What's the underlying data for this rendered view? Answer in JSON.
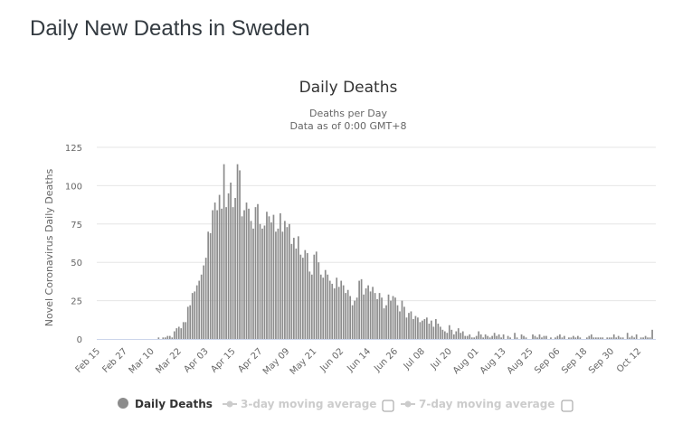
{
  "page": {
    "title": "Daily New Deaths in Sweden"
  },
  "chart_data": {
    "type": "bar",
    "title": "Daily Deaths",
    "subtitle_lines": [
      "Deaths per Day",
      "Data as of 0:00 GMT+8"
    ],
    "xlabel": "",
    "ylabel": "Novel Coronavirus Daily Deaths",
    "ylim": [
      0,
      125
    ],
    "yticks": [
      0,
      25,
      50,
      75,
      100,
      125
    ],
    "grid": true,
    "start_date": "Feb 15",
    "xtick_labels": [
      "Feb 15",
      "Feb 27",
      "Mar 10",
      "Mar 22",
      "Apr 03",
      "Apr 15",
      "Apr 27",
      "May 09",
      "May 21",
      "Jun 02",
      "Jun 14",
      "Jun 26",
      "Jul 08",
      "Jul 20",
      "Aug 01",
      "Aug 13",
      "Aug 25",
      "Sep 06",
      "Sep 18",
      "Sep 30",
      "Oct 12"
    ],
    "xtick_interval_days": 12,
    "bar_color": "#8c8c8c",
    "legend_position": "bottom-center",
    "series": [
      {
        "name": "Daily Deaths",
        "values": [
          0,
          0,
          0,
          0,
          0,
          0,
          0,
          0,
          0,
          0,
          0,
          0,
          0,
          0,
          0,
          0,
          0,
          0,
          0,
          0,
          0,
          0,
          0,
          0,
          0,
          0,
          0,
          1,
          0,
          1,
          1,
          2,
          2,
          1,
          5,
          7,
          8,
          7,
          11,
          11,
          21,
          22,
          30,
          31,
          35,
          38,
          42,
          48,
          53,
          70,
          69,
          84,
          89,
          84,
          94,
          85,
          114,
          86,
          95,
          102,
          86,
          92,
          114,
          110,
          80,
          84,
          89,
          85,
          77,
          72,
          86,
          88,
          75,
          72,
          74,
          83,
          80,
          76,
          81,
          70,
          72,
          82,
          70,
          77,
          73,
          75,
          62,
          66,
          59,
          67,
          55,
          53,
          58,
          56,
          44,
          42,
          55,
          57,
          50,
          42,
          40,
          45,
          42,
          38,
          36,
          33,
          40,
          34,
          38,
          35,
          30,
          32,
          28,
          22,
          25,
          27,
          38,
          39,
          29,
          33,
          35,
          31,
          34,
          30,
          26,
          30,
          27,
          20,
          22,
          29,
          25,
          28,
          27,
          22,
          18,
          25,
          21,
          14,
          17,
          18,
          13,
          15,
          14,
          11,
          12,
          13,
          14,
          10,
          12,
          8,
          13,
          10,
          8,
          6,
          5,
          4,
          9,
          6,
          3,
          5,
          7,
          4,
          5,
          2,
          2,
          3,
          1,
          1,
          2,
          5,
          3,
          1,
          3,
          2,
          1,
          2,
          4,
          2,
          3,
          1,
          3,
          0,
          2,
          1,
          0,
          4,
          1,
          0,
          3,
          2,
          1,
          0,
          0,
          3,
          2,
          1,
          3,
          1,
          2,
          2,
          0,
          1,
          0,
          1,
          2,
          3,
          1,
          2,
          0,
          1,
          1,
          2,
          1,
          2,
          1,
          0,
          0,
          1,
          2,
          3,
          1,
          1,
          1,
          1,
          1,
          0,
          1,
          1,
          1,
          3,
          1,
          2,
          1,
          1,
          0,
          4,
          1,
          2,
          1,
          3,
          0,
          1,
          1,
          2,
          1,
          1,
          6
        ]
      },
      {
        "name": "3-day moving average",
        "visible": false
      },
      {
        "name": "7-day moving average",
        "visible": false
      }
    ]
  },
  "legend": {
    "items": [
      {
        "label": "Daily Deaths",
        "active": true,
        "color": "#8c8c8c"
      },
      {
        "label": "3-day moving average",
        "active": false,
        "color": "#cccccc"
      },
      {
        "label": "7-day moving average",
        "active": false,
        "color": "#cccccc"
      }
    ]
  }
}
